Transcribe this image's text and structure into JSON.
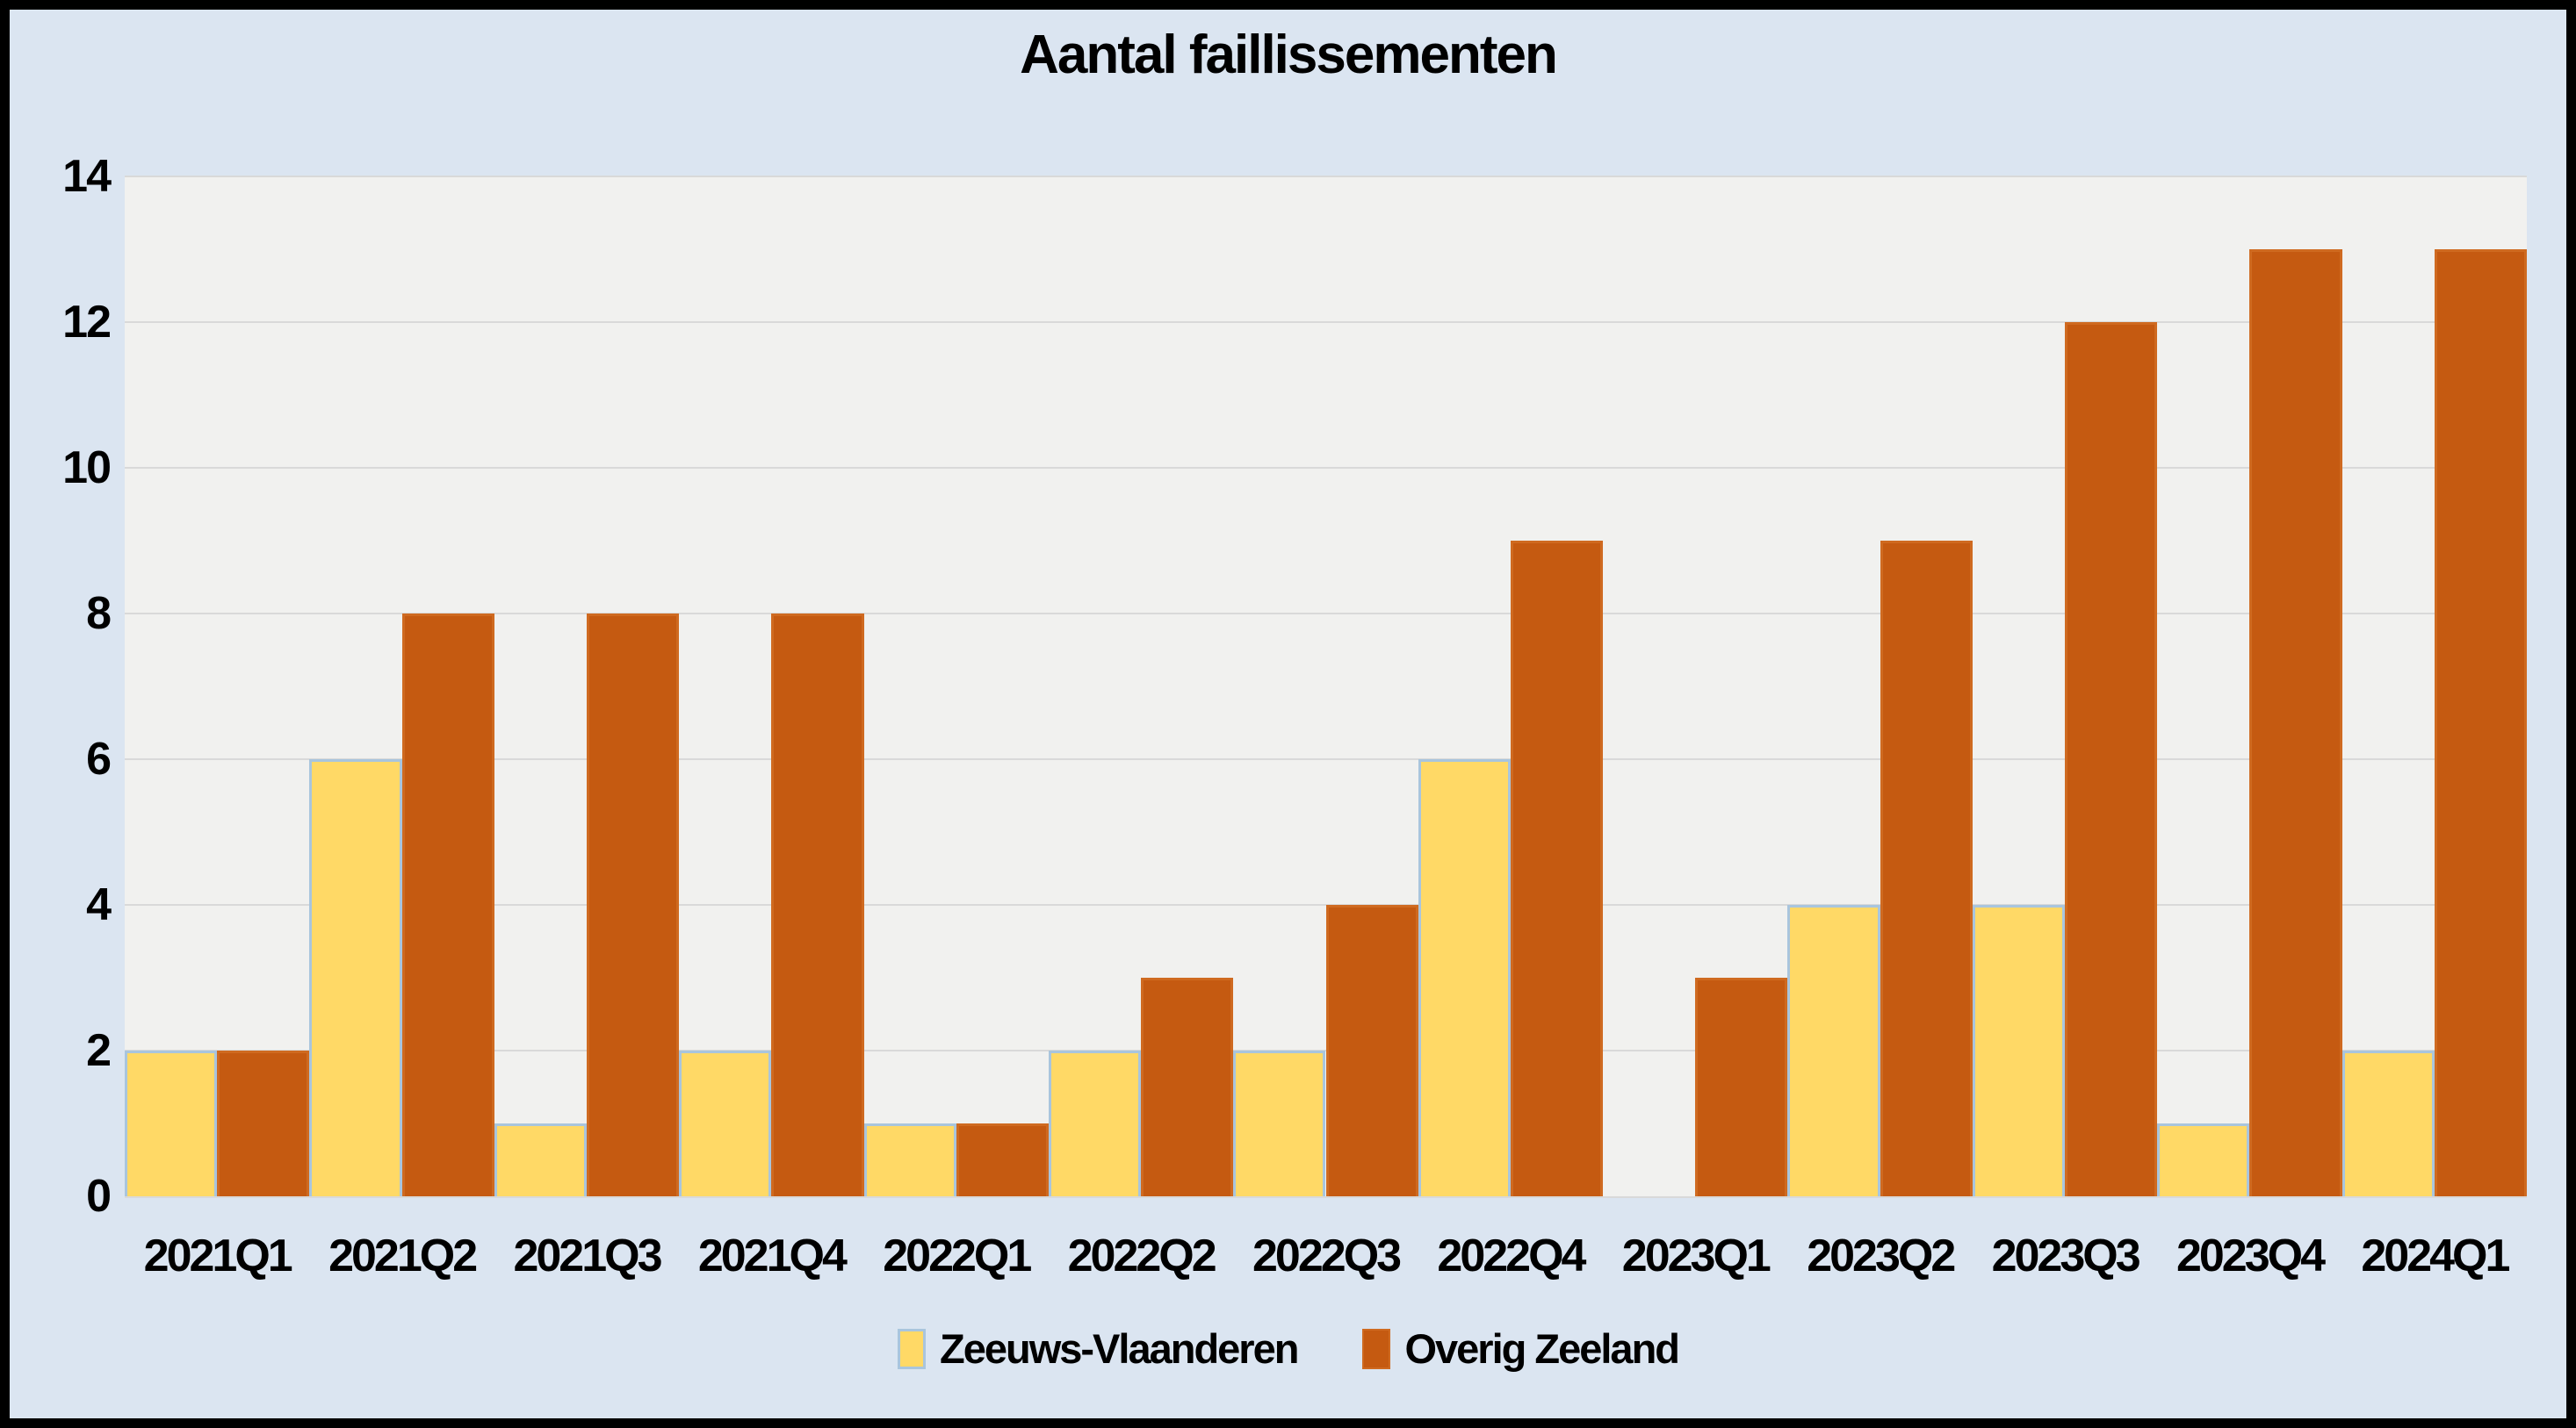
{
  "colors": {
    "frame": "#000000",
    "background": "#dbe5f1",
    "plot_background": "#f1f1ef",
    "gridline": "#d9d9d9",
    "text": "#000000",
    "series1_fill": "#ffd966",
    "series1_border": "#a9c5dd",
    "series2_fill": "#c55a11",
    "series2_border": "#cf6a20"
  },
  "chart_data": {
    "type": "bar",
    "title": "Aantal faillissementen",
    "categories": [
      "2021Q1",
      "2021Q2",
      "2021Q3",
      "2021Q4",
      "2022Q1",
      "2022Q2",
      "2022Q3",
      "2022Q4",
      "2023Q1",
      "2023Q2",
      "2023Q3",
      "2023Q4",
      "2024Q1"
    ],
    "series": [
      {
        "name": "Zeeuws-Vlaanderen",
        "color": "#ffd966",
        "values": [
          2,
          6,
          1,
          2,
          1,
          2,
          2,
          6,
          0,
          4,
          4,
          1,
          2
        ]
      },
      {
        "name": "Overig Zeeland",
        "color": "#c55a11",
        "values": [
          2,
          8,
          8,
          8,
          1,
          3,
          4,
          9,
          3,
          9,
          12,
          13,
          13
        ]
      }
    ],
    "xlabel": "",
    "ylabel": "",
    "ylim": [
      0,
      14
    ],
    "yticks": [
      0,
      2,
      4,
      6,
      8,
      10,
      12,
      14
    ],
    "grid": true,
    "legend_position": "bottom"
  }
}
